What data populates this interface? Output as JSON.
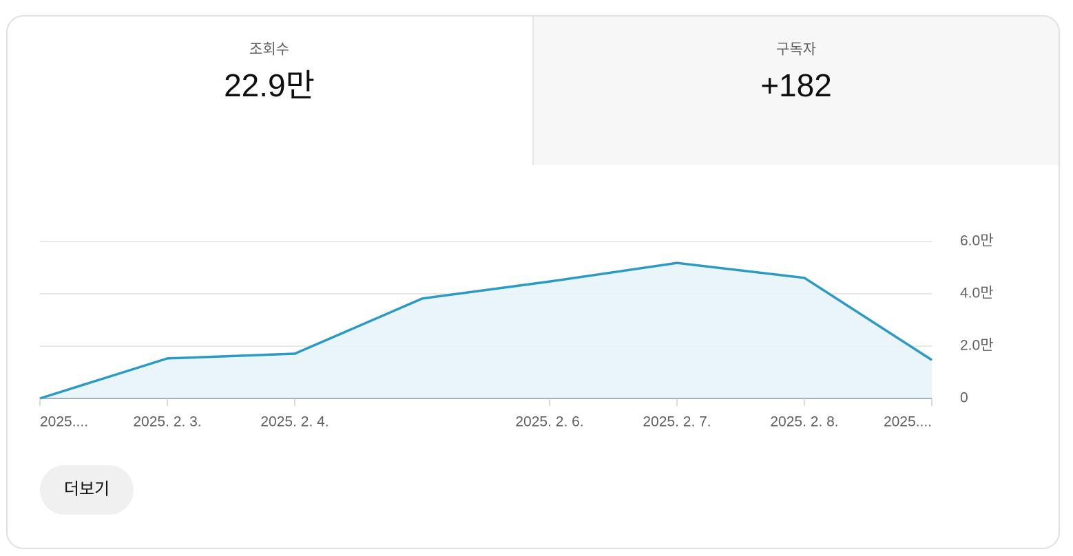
{
  "tabs": [
    {
      "label": "조회수",
      "value": "22.9만"
    },
    {
      "label": "구독자",
      "value": "+182"
    }
  ],
  "chart_data": {
    "type": "area",
    "categories": [
      "2025....",
      "2025. 2. 3.",
      "2025. 2. 4.",
      null,
      "2025. 2. 6.",
      "2025. 2. 7.",
      "2025. 2. 8.",
      "2025...."
    ],
    "values": [
      0,
      15300,
      17100,
      38200,
      44700,
      51800,
      46100,
      14700
    ],
    "color": "#2b9ac4",
    "fill": "#e8f4fa",
    "ylim": [
      0,
      60000
    ],
    "yticks": [
      0,
      {
        "value": 20000,
        "label": "2.0만"
      },
      {
        "value": 40000,
        "label": "4.0만"
      },
      {
        "value": 60000,
        "label": "6.0만"
      }
    ],
    "grid": true
  },
  "button": "더보기"
}
